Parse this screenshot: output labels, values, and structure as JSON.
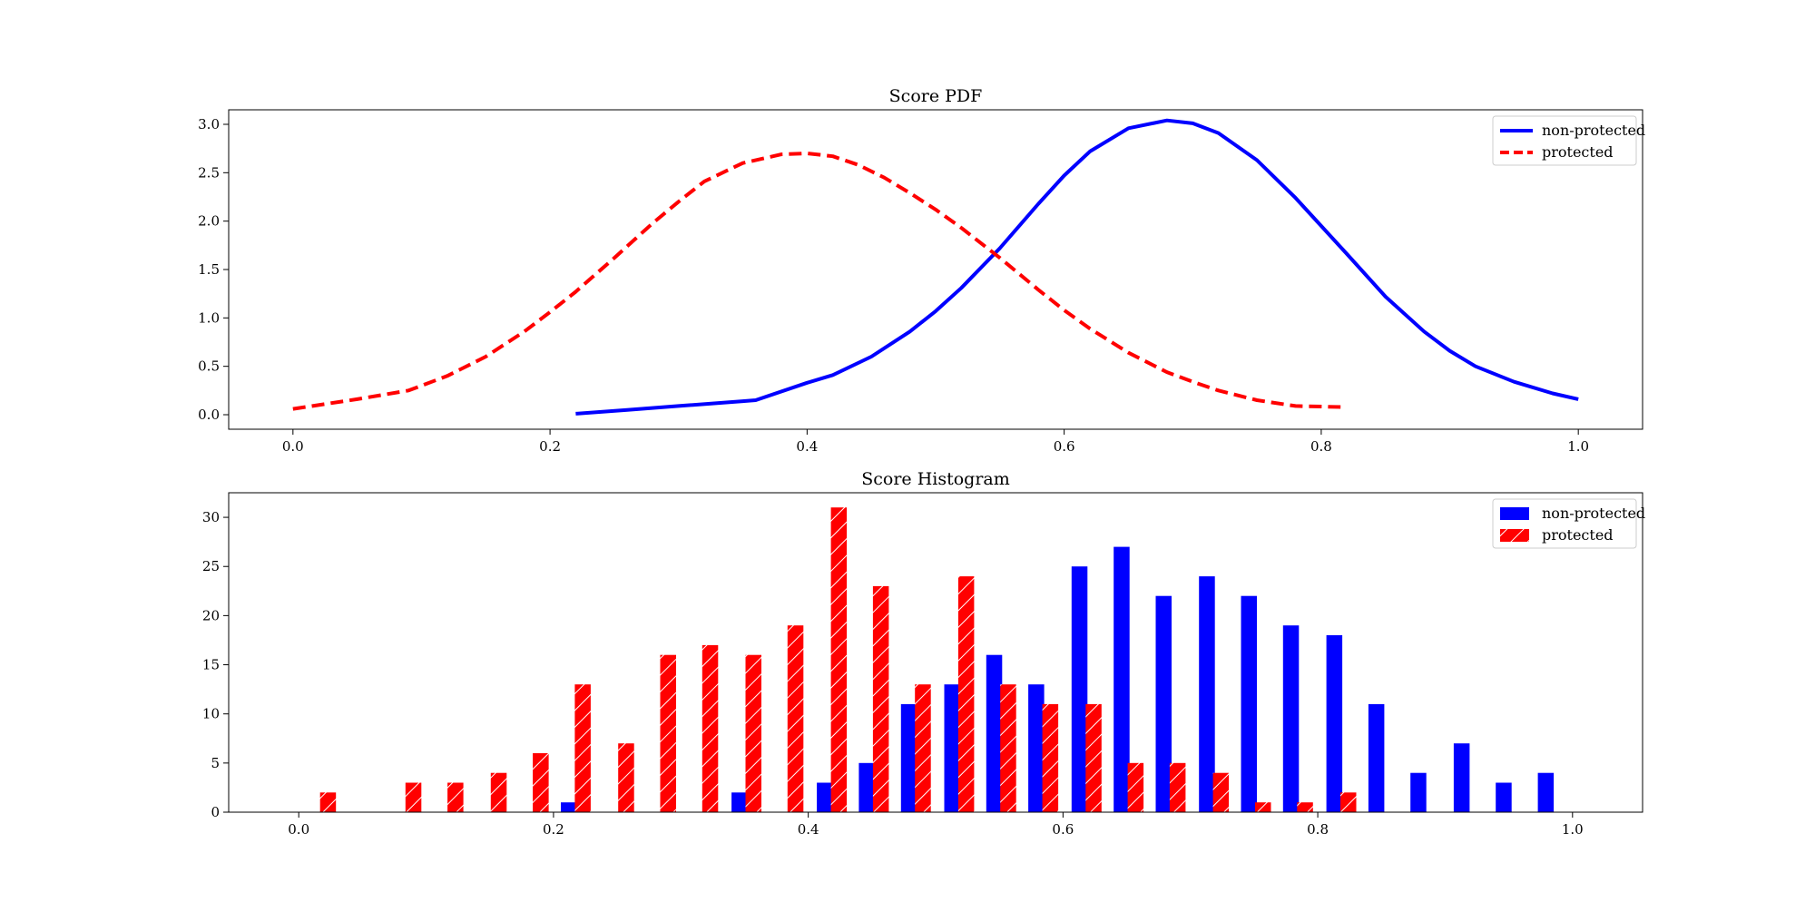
{
  "colors": {
    "non_protected": "#0000ff",
    "protected": "#ff0000"
  },
  "chart_data": [
    {
      "type": "line",
      "title": "Score PDF",
      "xlabel": "",
      "ylabel": "",
      "xlim": [
        -0.05,
        1.05
      ],
      "ylim": [
        -0.15,
        3.15
      ],
      "xticks": [
        0.0,
        0.2,
        0.4,
        0.6,
        0.8,
        1.0
      ],
      "xtick_labels": [
        "0.0",
        "0.2",
        "0.4",
        "0.6",
        "0.8",
        "1.0"
      ],
      "yticks": [
        0.0,
        0.5,
        1.0,
        1.5,
        2.0,
        2.5,
        3.0
      ],
      "ytick_labels": [
        "0.0",
        "0.5",
        "1.0",
        "1.5",
        "2.0",
        "2.5",
        "3.0"
      ],
      "grid": false,
      "legend_position": "top-right",
      "series": [
        {
          "name": "non-protected",
          "color": "#0000ff",
          "style": "solid",
          "x": [
            0.22,
            0.26,
            0.3,
            0.35,
            0.36,
            0.4,
            0.42,
            0.45,
            0.48,
            0.5,
            0.52,
            0.55,
            0.58,
            0.6,
            0.62,
            0.65,
            0.68,
            0.7,
            0.72,
            0.75,
            0.78,
            0.8,
            0.82,
            0.85,
            0.88,
            0.9,
            0.92,
            0.95,
            0.98,
            1.0
          ],
          "y": [
            0.01,
            0.05,
            0.09,
            0.14,
            0.15,
            0.33,
            0.41,
            0.6,
            0.86,
            1.07,
            1.31,
            1.72,
            2.18,
            2.47,
            2.72,
            2.96,
            3.04,
            3.01,
            2.91,
            2.63,
            2.24,
            1.95,
            1.66,
            1.22,
            0.86,
            0.66,
            0.5,
            0.34,
            0.22,
            0.16
          ]
        },
        {
          "name": "protected",
          "color": "#ff0000",
          "style": "dashed",
          "x": [
            0.0,
            0.05,
            0.09,
            0.12,
            0.15,
            0.18,
            0.2,
            0.22,
            0.25,
            0.28,
            0.3,
            0.32,
            0.35,
            0.38,
            0.4,
            0.42,
            0.44,
            0.46,
            0.48,
            0.5,
            0.52,
            0.55,
            0.58,
            0.6,
            0.62,
            0.65,
            0.68,
            0.7,
            0.72,
            0.75,
            0.78,
            0.815
          ],
          "y": [
            0.06,
            0.16,
            0.25,
            0.4,
            0.6,
            0.86,
            1.06,
            1.27,
            1.62,
            1.98,
            2.2,
            2.41,
            2.6,
            2.69,
            2.7,
            2.67,
            2.58,
            2.45,
            2.29,
            2.12,
            1.93,
            1.62,
            1.29,
            1.08,
            0.89,
            0.64,
            0.44,
            0.34,
            0.25,
            0.15,
            0.09,
            0.08
          ]
        }
      ]
    },
    {
      "type": "bar",
      "title": "Score Histogram",
      "xlabel": "",
      "ylabel": "",
      "xlim": [
        -0.055,
        1.055
      ],
      "ylim": [
        0,
        32.5
      ],
      "xticks": [
        0.0,
        0.2,
        0.4,
        0.6,
        0.8,
        1.0
      ],
      "xtick_labels": [
        "0.0",
        "0.2",
        "0.4",
        "0.6",
        "0.8",
        "1.0"
      ],
      "yticks": [
        0,
        5,
        10,
        15,
        20,
        25,
        30
      ],
      "ytick_labels": [
        "0",
        "5",
        "10",
        "15",
        "20",
        "25",
        "30"
      ],
      "grid": false,
      "legend_position": "top-right",
      "bar_width": 0.0125,
      "series": [
        {
          "name": "non-protected",
          "color": "#0000ff",
          "hatch": "none",
          "x": [
            0.212,
            0.346,
            0.413,
            0.446,
            0.479,
            0.513,
            0.546,
            0.579,
            0.613,
            0.646,
            0.679,
            0.713,
            0.746,
            0.779,
            0.813,
            0.846,
            0.879,
            0.913,
            0.946,
            0.979
          ],
          "values": [
            1,
            2,
            3,
            5,
            11,
            13,
            16,
            13,
            25,
            27,
            22,
            24,
            22,
            19,
            18,
            11,
            4,
            7,
            3,
            4
          ]
        },
        {
          "name": "protected",
          "color": "#ff0000",
          "hatch": "diagonal",
          "x": [
            0.023,
            0.09,
            0.123,
            0.157,
            0.19,
            0.223,
            0.257,
            0.29,
            0.323,
            0.357,
            0.39,
            0.424,
            0.457,
            0.49,
            0.524,
            0.557,
            0.59,
            0.624,
            0.657,
            0.69,
            0.724,
            0.757,
            0.79,
            0.824
          ],
          "values": [
            2,
            3,
            3,
            4,
            6,
            13,
            7,
            16,
            17,
            16,
            19,
            31,
            23,
            13,
            24,
            13,
            11,
            11,
            5,
            5,
            4,
            1,
            1,
            2
          ]
        }
      ]
    }
  ]
}
